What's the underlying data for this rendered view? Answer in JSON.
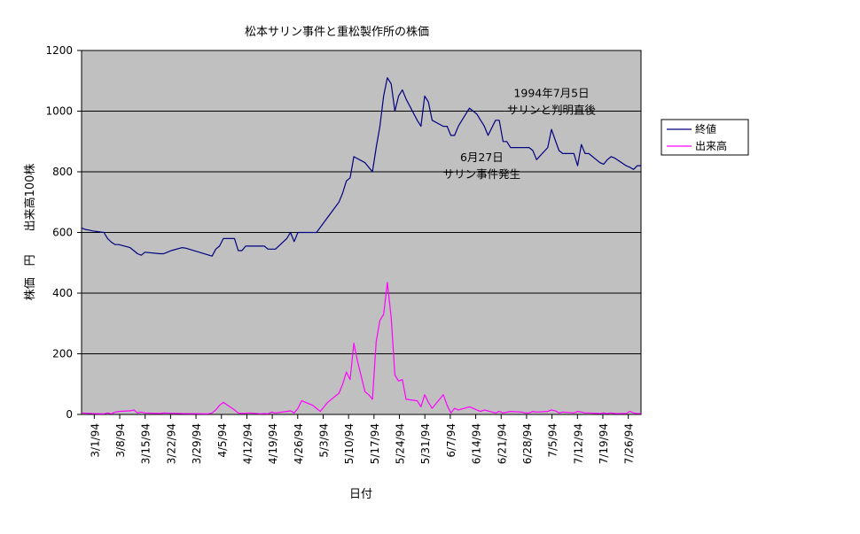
{
  "chart_data": {
    "type": "line",
    "title": "松本サリン事件と重松製作所の株価",
    "xlabel": "日付",
    "ylabel": "株価　円　　出来高100株",
    "ylim": [
      0,
      1200
    ],
    "yticks": [
      0,
      200,
      400,
      600,
      800,
      1000,
      1200
    ],
    "x_start": "1994-03-01",
    "x_end": "1994-07-29",
    "xtick_labels": [
      "3/1/94",
      "3/8/94",
      "3/15/94",
      "3/22/94",
      "3/29/94",
      "4/5/94",
      "4/12/94",
      "4/19/94",
      "4/26/94",
      "5/3/94",
      "5/10/94",
      "5/17/94",
      "5/24/94",
      "5/31/94",
      "6/7/94",
      "6/14/94",
      "6/21/94",
      "6/28/94",
      "7/5/94",
      "7/12/94",
      "7/19/94",
      "7/26/94"
    ],
    "grid": "horizontal",
    "legend_position": "right",
    "plot_background": "#C0C0C0",
    "series": [
      {
        "name": "終値",
        "color": "#000080",
        "points": [
          [
            "1994-03-01",
            615
          ],
          [
            "1994-03-02",
            610
          ],
          [
            "1994-03-03",
            608
          ],
          [
            "1994-03-04",
            605
          ],
          [
            "1994-03-07",
            600
          ],
          [
            "1994-03-08",
            580
          ],
          [
            "1994-03-09",
            568
          ],
          [
            "1994-03-10",
            560
          ],
          [
            "1994-03-11",
            560
          ],
          [
            "1994-03-14",
            550
          ],
          [
            "1994-03-15",
            540
          ],
          [
            "1994-03-16",
            530
          ],
          [
            "1994-03-17",
            525
          ],
          [
            "1994-03-18",
            535
          ],
          [
            "1994-03-22",
            530
          ],
          [
            "1994-03-23",
            530
          ],
          [
            "1994-03-24",
            535
          ],
          [
            "1994-03-25",
            540
          ],
          [
            "1994-03-28",
            550
          ],
          [
            "1994-03-29",
            548
          ],
          [
            "1994-04-05",
            522
          ],
          [
            "1994-04-06",
            545
          ],
          [
            "1994-04-07",
            555
          ],
          [
            "1994-04-08",
            580
          ],
          [
            "1994-04-11",
            580
          ],
          [
            "1994-04-12",
            540
          ],
          [
            "1994-04-13",
            540
          ],
          [
            "1994-04-14",
            555
          ],
          [
            "1994-04-15",
            555
          ],
          [
            "1994-04-18",
            555
          ],
          [
            "1994-04-19",
            555
          ],
          [
            "1994-04-20",
            545
          ],
          [
            "1994-04-21",
            545
          ],
          [
            "1994-04-22",
            545
          ],
          [
            "1994-04-25",
            580
          ],
          [
            "1994-04-26",
            600
          ],
          [
            "1994-04-27",
            570
          ],
          [
            "1994-04-28",
            600
          ],
          [
            "1994-05-02",
            600
          ],
          [
            "1994-05-03",
            600
          ],
          [
            "1994-05-06",
            650
          ],
          [
            "1994-05-09",
            700
          ],
          [
            "1994-05-10",
            730
          ],
          [
            "1994-05-11",
            770
          ],
          [
            "1994-05-12",
            780
          ],
          [
            "1994-05-13",
            850
          ],
          [
            "1994-05-16",
            830
          ],
          [
            "1994-05-17",
            815
          ],
          [
            "1994-05-18",
            800
          ],
          [
            "1994-05-19",
            880
          ],
          [
            "1994-05-20",
            950
          ],
          [
            "1994-05-21",
            1050
          ],
          [
            "1994-05-22",
            1110
          ],
          [
            "1994-05-23",
            1090
          ],
          [
            "1994-05-24",
            1000
          ],
          [
            "1994-05-25",
            1050
          ],
          [
            "1994-05-26",
            1070
          ],
          [
            "1994-05-27",
            1040
          ],
          [
            "1994-05-30",
            970
          ],
          [
            "1994-05-31",
            950
          ],
          [
            "1994-06-01",
            1050
          ],
          [
            "1994-06-02",
            1030
          ],
          [
            "1994-06-03",
            970
          ],
          [
            "1994-06-06",
            950
          ],
          [
            "1994-06-07",
            950
          ],
          [
            "1994-06-08",
            920
          ],
          [
            "1994-06-09",
            920
          ],
          [
            "1994-06-10",
            950
          ],
          [
            "1994-06-13",
            1010
          ],
          [
            "1994-06-14",
            1000
          ],
          [
            "1994-06-15",
            990
          ],
          [
            "1994-06-16",
            970
          ],
          [
            "1994-06-17",
            950
          ],
          [
            "1994-06-18",
            920
          ],
          [
            "1994-06-20",
            970
          ],
          [
            "1994-06-21",
            970
          ],
          [
            "1994-06-22",
            900
          ],
          [
            "1994-06-23",
            900
          ],
          [
            "1994-06-24",
            880
          ],
          [
            "1994-06-27",
            880
          ],
          [
            "1994-06-28",
            880
          ],
          [
            "1994-06-29",
            880
          ],
          [
            "1994-06-30",
            870
          ],
          [
            "1994-07-01",
            840
          ],
          [
            "1994-07-04",
            880
          ],
          [
            "1994-07-05",
            940
          ],
          [
            "1994-07-06",
            905
          ],
          [
            "1994-07-07",
            870
          ],
          [
            "1994-07-08",
            860
          ],
          [
            "1994-07-11",
            860
          ],
          [
            "1994-07-12",
            820
          ],
          [
            "1994-07-13",
            890
          ],
          [
            "1994-07-14",
            860
          ],
          [
            "1994-07-15",
            860
          ],
          [
            "1994-07-18",
            830
          ],
          [
            "1994-07-19",
            825
          ],
          [
            "1994-07-20",
            840
          ],
          [
            "1994-07-21",
            850
          ],
          [
            "1994-07-22",
            845
          ],
          [
            "1994-07-25",
            820
          ],
          [
            "1994-07-26",
            815
          ],
          [
            "1994-07-27",
            808
          ],
          [
            "1994-07-28",
            820
          ],
          [
            "1994-07-29",
            820
          ]
        ]
      },
      {
        "name": "出来高",
        "color": "#FF00FF",
        "points": [
          [
            "1994-03-01",
            5
          ],
          [
            "1994-03-04",
            3
          ],
          [
            "1994-03-07",
            2
          ],
          [
            "1994-03-08",
            5
          ],
          [
            "1994-03-09",
            2
          ],
          [
            "1994-03-10",
            8
          ],
          [
            "1994-03-11",
            10
          ],
          [
            "1994-03-14",
            12
          ],
          [
            "1994-03-15",
            15
          ],
          [
            "1994-03-16",
            5
          ],
          [
            "1994-03-17",
            8
          ],
          [
            "1994-03-18",
            5
          ],
          [
            "1994-03-22",
            3
          ],
          [
            "1994-03-23",
            5
          ],
          [
            "1994-03-28",
            3
          ],
          [
            "1994-04-04",
            2
          ],
          [
            "1994-04-05",
            5
          ],
          [
            "1994-04-06",
            15
          ],
          [
            "1994-04-07",
            30
          ],
          [
            "1994-04-08",
            40
          ],
          [
            "1994-04-11",
            15
          ],
          [
            "1994-04-12",
            5
          ],
          [
            "1994-04-13",
            3
          ],
          [
            "1994-04-15",
            5
          ],
          [
            "1994-04-18",
            2
          ],
          [
            "1994-04-19",
            3
          ],
          [
            "1994-04-20",
            2
          ],
          [
            "1994-04-21",
            8
          ],
          [
            "1994-04-22",
            5
          ],
          [
            "1994-04-25",
            10
          ],
          [
            "1994-04-26",
            12
          ],
          [
            "1994-04-27",
            5
          ],
          [
            "1994-04-28",
            20
          ],
          [
            "1994-04-29",
            45
          ],
          [
            "1994-05-02",
            30
          ],
          [
            "1994-05-03",
            20
          ],
          [
            "1994-05-04",
            10
          ],
          [
            "1994-05-06",
            40
          ],
          [
            "1994-05-09",
            70
          ],
          [
            "1994-05-10",
            100
          ],
          [
            "1994-05-11",
            140
          ],
          [
            "1994-05-12",
            115
          ],
          [
            "1994-05-13",
            235
          ],
          [
            "1994-05-14",
            175
          ],
          [
            "1994-05-16",
            75
          ],
          [
            "1994-05-17",
            65
          ],
          [
            "1994-05-18",
            50
          ],
          [
            "1994-05-19",
            240
          ],
          [
            "1994-05-20",
            310
          ],
          [
            "1994-05-21",
            330
          ],
          [
            "1994-05-22",
            435
          ],
          [
            "1994-05-23",
            320
          ],
          [
            "1994-05-24",
            130
          ],
          [
            "1994-05-25",
            110
          ],
          [
            "1994-05-26",
            115
          ],
          [
            "1994-05-27",
            50
          ],
          [
            "1994-05-30",
            45
          ],
          [
            "1994-05-31",
            25
          ],
          [
            "1994-06-01",
            65
          ],
          [
            "1994-06-02",
            40
          ],
          [
            "1994-06-03",
            20
          ],
          [
            "1994-06-06",
            65
          ],
          [
            "1994-06-07",
            30
          ],
          [
            "1994-06-08",
            5
          ],
          [
            "1994-06-09",
            20
          ],
          [
            "1994-06-10",
            15
          ],
          [
            "1994-06-13",
            25
          ],
          [
            "1994-06-14",
            20
          ],
          [
            "1994-06-15",
            15
          ],
          [
            "1994-06-16",
            10
          ],
          [
            "1994-06-17",
            15
          ],
          [
            "1994-06-20",
            5
          ],
          [
            "1994-06-21",
            10
          ],
          [
            "1994-06-22",
            5
          ],
          [
            "1994-06-24",
            10
          ],
          [
            "1994-06-27",
            8
          ],
          [
            "1994-06-28",
            5
          ],
          [
            "1994-06-29",
            5
          ],
          [
            "1994-06-30",
            10
          ],
          [
            "1994-07-01",
            8
          ],
          [
            "1994-07-04",
            10
          ],
          [
            "1994-07-05",
            15
          ],
          [
            "1994-07-06",
            12
          ],
          [
            "1994-07-07",
            5
          ],
          [
            "1994-07-08",
            8
          ],
          [
            "1994-07-11",
            5
          ],
          [
            "1994-07-12",
            10
          ],
          [
            "1994-07-13",
            8
          ],
          [
            "1994-07-14",
            5
          ],
          [
            "1994-07-15",
            5
          ],
          [
            "1994-07-18",
            3
          ],
          [
            "1994-07-19",
            5
          ],
          [
            "1994-07-20",
            3
          ],
          [
            "1994-07-21",
            5
          ],
          [
            "1994-07-22",
            3
          ],
          [
            "1994-07-25",
            3
          ],
          [
            "1994-07-26",
            10
          ],
          [
            "1994-07-27",
            5
          ],
          [
            "1994-07-28",
            3
          ],
          [
            "1994-07-29",
            3
          ]
        ]
      }
    ],
    "annotations": [
      {
        "lines": [
          "1994年7月5日",
          "サリンと判明直後"
        ],
        "x": "1994-07-05",
        "y": 1000
      },
      {
        "lines": [
          "6月27日",
          "サリン事件発生"
        ],
        "x": "1994-06-27",
        "y": 800
      }
    ]
  }
}
